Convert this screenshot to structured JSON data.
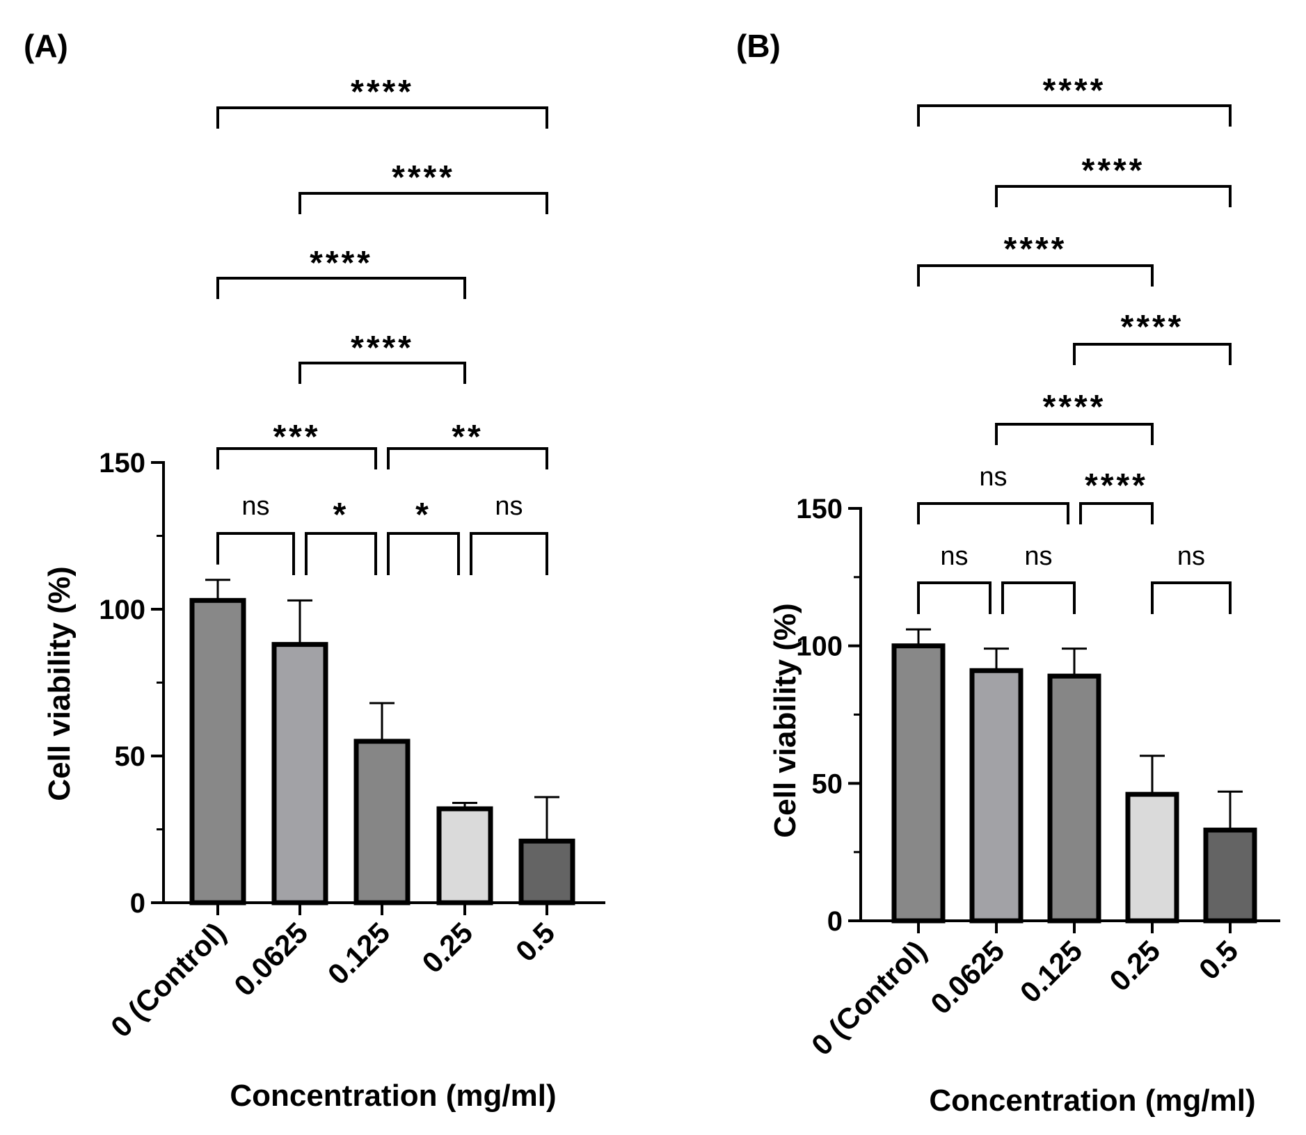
{
  "chart_data": [
    {
      "panel": "(A)",
      "type": "bar",
      "xlabel": "Concentration (mg/ml)",
      "ylabel": "Cell viability (%)",
      "ylim": [
        0,
        150
      ],
      "yticks": [
        0,
        50,
        100,
        150
      ],
      "categories": [
        "0 (Control)",
        "0.0625",
        "0.125",
        "0.25",
        "0.5"
      ],
      "values": [
        103,
        88,
        55,
        32,
        21
      ],
      "errors": [
        7,
        15,
        13,
        2,
        15
      ],
      "colors": [
        "#888888",
        "#a2a2a6",
        "#868686",
        "#dadada",
        "#646464"
      ],
      "comparisons": [
        {
          "from": 0,
          "to": 1,
          "label": "ns"
        },
        {
          "from": 1,
          "to": 2,
          "label": "*"
        },
        {
          "from": 2,
          "to": 3,
          "label": "*"
        },
        {
          "from": 3,
          "to": 4,
          "label": "ns"
        },
        {
          "from": 0,
          "to": 2,
          "label": "***"
        },
        {
          "from": 2,
          "to": 4,
          "label": "**"
        },
        {
          "from": 1,
          "to": 3,
          "label": "****"
        },
        {
          "from": 0,
          "to": 3,
          "label": "****"
        },
        {
          "from": 1,
          "to": 4,
          "label": "****"
        },
        {
          "from": 0,
          "to": 4,
          "label": "****"
        }
      ]
    },
    {
      "panel": "(B)",
      "type": "bar",
      "xlabel": "Concentration (mg/ml)",
      "ylabel": "Cell viability (%)",
      "ylim": [
        0,
        150
      ],
      "yticks": [
        0,
        50,
        100,
        150
      ],
      "categories": [
        "0 (Control)",
        "0.0625",
        "0.125",
        "0.25",
        "0.5"
      ],
      "values": [
        100,
        91,
        89,
        46,
        33
      ],
      "errors": [
        6,
        8,
        10,
        14,
        14
      ],
      "colors": [
        "#888888",
        "#a2a2a6",
        "#868686",
        "#dadada",
        "#646464"
      ],
      "comparisons": [
        {
          "from": 0,
          "to": 1,
          "label": "ns"
        },
        {
          "from": 1,
          "to": 2,
          "label": "ns"
        },
        {
          "from": 3,
          "to": 4,
          "label": "ns"
        },
        {
          "from": 0,
          "to": 2,
          "label": "ns"
        },
        {
          "from": 2,
          "to": 3,
          "label": "****"
        },
        {
          "from": 1,
          "to": 3,
          "label": "****"
        },
        {
          "from": 2,
          "to": 4,
          "label": "****"
        },
        {
          "from": 0,
          "to": 3,
          "label": "****"
        },
        {
          "from": 1,
          "to": 4,
          "label": "****"
        },
        {
          "from": 0,
          "to": 4,
          "label": "****"
        }
      ]
    }
  ]
}
